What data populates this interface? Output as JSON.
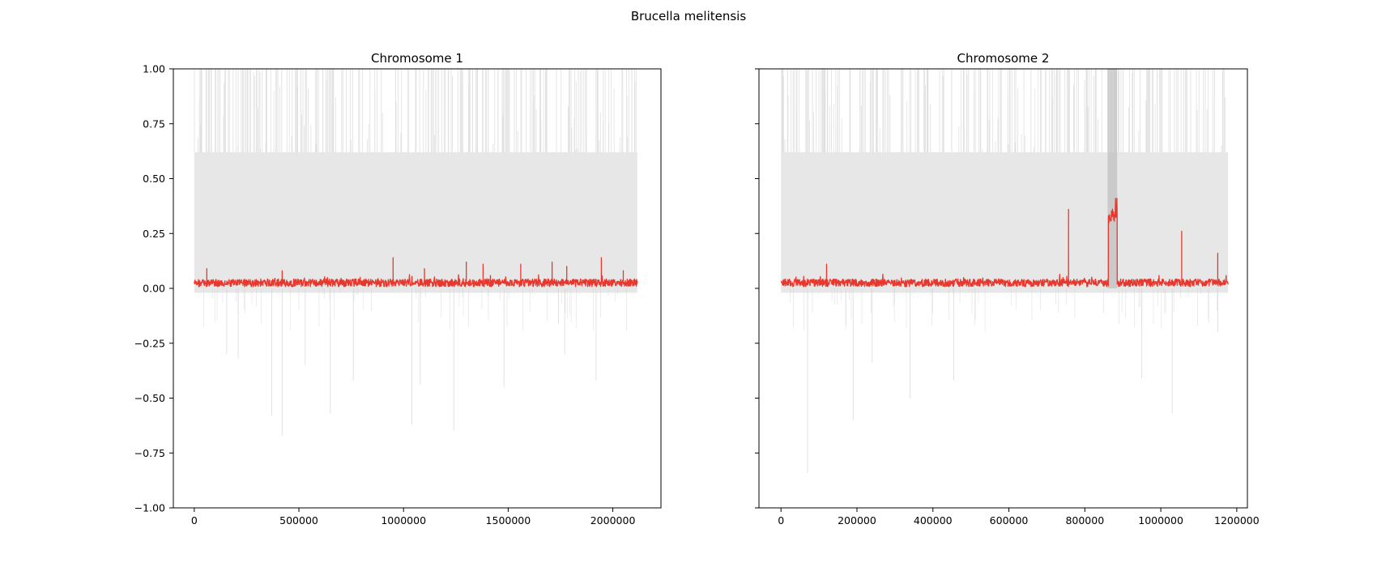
{
  "figure": {
    "suptitle": "Brucella melitensis"
  },
  "chart_data": [
    {
      "type": "line",
      "title": "Chromosome 1",
      "xlabel": "",
      "ylabel": "",
      "xlim": [
        -100000,
        2230000
      ],
      "ylim": [
        -1.0,
        1.0
      ],
      "x_ticks": [
        0,
        500000,
        1000000,
        1500000,
        2000000
      ],
      "x_tick_labels": [
        "0",
        "500000",
        "1000000",
        "1500000",
        "2000000"
      ],
      "y_ticks": [
        -1.0,
        -0.75,
        -0.5,
        -0.25,
        0.0,
        0.25,
        0.5,
        0.75,
        1.0
      ],
      "y_tick_labels": [
        "−1.00",
        "−0.75",
        "−0.50",
        "−0.25",
        "0.00",
        "0.25",
        "0.50",
        "0.75",
        "1.00"
      ],
      "show_y_tick_labels": true,
      "grid": false,
      "background_series": {
        "color": "#d3d3d3",
        "x_range": [
          0,
          2117000
        ],
        "typical_upper": 0.62,
        "typical_lower": -0.02,
        "dips": [
          {
            "x": 155000,
            "y": -0.3
          },
          {
            "x": 210000,
            "y": -0.32
          },
          {
            "x": 370000,
            "y": -0.58
          },
          {
            "x": 420000,
            "y": -0.67
          },
          {
            "x": 530000,
            "y": -0.35
          },
          {
            "x": 650000,
            "y": -0.57
          },
          {
            "x": 760000,
            "y": -0.42
          },
          {
            "x": 1040000,
            "y": -0.62
          },
          {
            "x": 1080000,
            "y": -0.44
          },
          {
            "x": 1240000,
            "y": -0.65
          },
          {
            "x": 1480000,
            "y": -0.45
          },
          {
            "x": 1740000,
            "y": -0.16
          },
          {
            "x": 1770000,
            "y": -0.3
          },
          {
            "x": 1920000,
            "y": -0.42
          }
        ]
      },
      "main_series": {
        "color": "#e8372c",
        "x_range": [
          0,
          2117000
        ],
        "baseline": 0.02,
        "noise": 0.025,
        "peaks": [
          {
            "x": 60000,
            "y": 0.09
          },
          {
            "x": 420000,
            "y": 0.08
          },
          {
            "x": 950000,
            "y": 0.14
          },
          {
            "x": 1100000,
            "y": 0.09
          },
          {
            "x": 1300000,
            "y": 0.12
          },
          {
            "x": 1380000,
            "y": 0.11
          },
          {
            "x": 1560000,
            "y": 0.11
          },
          {
            "x": 1710000,
            "y": 0.12
          },
          {
            "x": 1780000,
            "y": 0.1
          },
          {
            "x": 1945000,
            "y": 0.14
          },
          {
            "x": 2050000,
            "y": 0.08
          }
        ]
      }
    },
    {
      "type": "line",
      "title": "Chromosome 2",
      "xlabel": "",
      "ylabel": "",
      "xlim": [
        -58000,
        1228000
      ],
      "ylim": [
        -1.0,
        1.0
      ],
      "x_ticks": [
        0,
        200000,
        400000,
        600000,
        800000,
        1000000,
        1200000
      ],
      "x_tick_labels": [
        "0",
        "200000",
        "400000",
        "600000",
        "800000",
        "1000000",
        "1200000"
      ],
      "y_ticks": [
        -1.0,
        -0.75,
        -0.5,
        -0.25,
        0.0,
        0.25,
        0.5,
        0.75,
        1.0
      ],
      "y_tick_labels": [],
      "show_y_tick_labels": false,
      "grid": false,
      "background_series": {
        "color": "#d3d3d3",
        "x_range": [
          0,
          1177000
        ],
        "typical_upper": 0.62,
        "typical_lower": -0.02,
        "dips": [
          {
            "x": 70000,
            "y": -0.84
          },
          {
            "x": 190000,
            "y": -0.6
          },
          {
            "x": 240000,
            "y": -0.34
          },
          {
            "x": 340000,
            "y": -0.5
          },
          {
            "x": 455000,
            "y": -0.42
          },
          {
            "x": 950000,
            "y": -0.41
          },
          {
            "x": 1030000,
            "y": -0.57
          },
          {
            "x": 1150000,
            "y": -0.2
          }
        ],
        "dense_block": {
          "x_start": 860000,
          "x_end": 885000,
          "y_top": 1.0,
          "y_bottom": 0.0
        }
      },
      "main_series": {
        "color": "#e8372c",
        "x_range": [
          0,
          1177000
        ],
        "baseline": 0.02,
        "noise": 0.025,
        "peaks": [
          {
            "x": 120000,
            "y": 0.11
          },
          {
            "x": 757000,
            "y": 0.36
          },
          {
            "x": 1055000,
            "y": 0.26
          },
          {
            "x": 1150000,
            "y": 0.16
          }
        ],
        "plateau": {
          "x_start": 862000,
          "x_end": 885000,
          "y": 0.33,
          "max": 0.41
        }
      }
    }
  ]
}
